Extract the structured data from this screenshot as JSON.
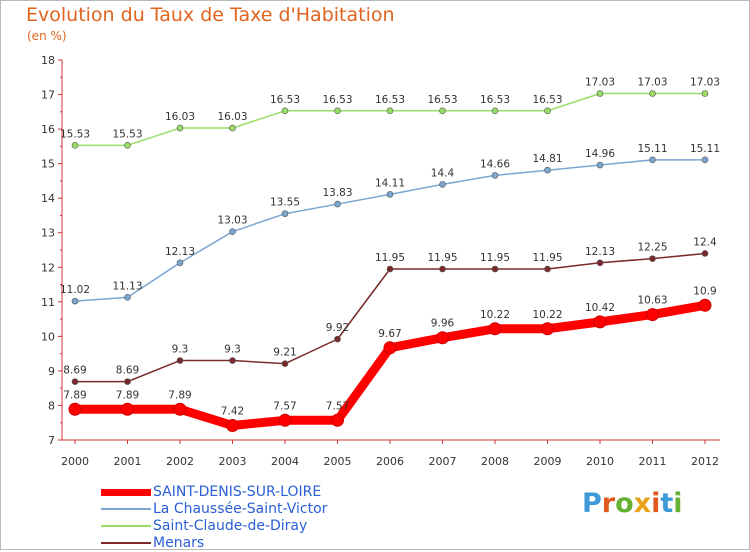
{
  "header": {
    "title": "Evolution du Taux de Taxe d'Habitation",
    "unit": "(en %)"
  },
  "chart_data": {
    "type": "line",
    "title": "Evolution du Taux de Taxe d'Habitation",
    "ylabel": "(en %)",
    "xlabel": "",
    "x": [
      "2000",
      "2001",
      "2002",
      "2003",
      "2004",
      "2005",
      "2006",
      "2007",
      "2008",
      "2009",
      "2010",
      "2011",
      "2012"
    ],
    "ylim": [
      7,
      18
    ],
    "yticks": [
      7,
      8,
      9,
      10,
      11,
      12,
      13,
      14,
      15,
      16,
      17,
      18
    ],
    "grid": false,
    "legend_position": "bottom-left",
    "series": [
      {
        "name": "SAINT-DENIS-SUR-LOIRE",
        "color": "#ff0000",
        "values": [
          7.89,
          7.89,
          7.89,
          7.42,
          7.57,
          7.57,
          9.67,
          9.96,
          10.22,
          10.22,
          10.42,
          10.63,
          10.9
        ],
        "labels": [
          "7.89",
          "7.89",
          "7.89",
          "7.42",
          "7.57",
          "7.57",
          "9.67",
          "9.96",
          "10.22",
          "10.22",
          "10.42",
          "10.63",
          "10.9"
        ]
      },
      {
        "name": "La Chaussée-Saint-Victor",
        "color": "#7aa6d1",
        "values": [
          11.02,
          11.13,
          12.13,
          13.03,
          13.55,
          13.83,
          14.11,
          14.4,
          14.66,
          14.81,
          14.96,
          15.11,
          15.11
        ],
        "labels": [
          "11.02",
          "11.13",
          "12.13",
          "13.03",
          "13.55",
          "13.83",
          "14.11",
          "14.4",
          "14.66",
          "14.81",
          "14.96",
          "15.11",
          "15.11"
        ]
      },
      {
        "name": "Saint-Claude-de-Diray",
        "color": "#99dd66",
        "values": [
          15.53,
          15.53,
          16.03,
          16.03,
          16.53,
          16.53,
          16.53,
          16.53,
          16.53,
          16.53,
          17.03,
          17.03,
          17.03
        ],
        "labels": [
          "15.53",
          "15.53",
          "16.03",
          "16.03",
          "16.53",
          "16.53",
          "16.53",
          "16.53",
          "16.53",
          "16.53",
          "17.03",
          "17.03",
          "17.03"
        ]
      },
      {
        "name": "Menars",
        "color": "#7a2a2a",
        "values": [
          8.69,
          8.69,
          9.3,
          9.3,
          9.21,
          9.92,
          11.95,
          11.95,
          11.95,
          11.95,
          12.13,
          12.25,
          12.4
        ],
        "labels": [
          "8.69",
          "8.69",
          "9.3",
          "9.3",
          "9.21",
          "9.92",
          "11.95",
          "11.95",
          "11.95",
          "11.95",
          "12.13",
          "12.25",
          "12.4"
        ]
      }
    ]
  },
  "legend": {
    "items": [
      {
        "label": "SAINT-DENIS-SUR-LOIRE",
        "color": "#ff0000",
        "text_color": "#2a5fd6"
      },
      {
        "label": "La Chaussée-Saint-Victor",
        "color": "#7aa6d1",
        "text_color": "#2a5fd6"
      },
      {
        "label": "Saint-Claude-de-Diray",
        "color": "#99dd66",
        "text_color": "#2a5fd6"
      },
      {
        "label": "Menars",
        "color": "#7a2a2a",
        "text_color": "#2a5fd6"
      }
    ]
  },
  "logo": {
    "letters": [
      "P",
      "r",
      "o",
      "x",
      "i",
      "t",
      "i"
    ],
    "colors": [
      "#3d9ad6",
      "#e05a1e",
      "#66b032",
      "#e8a317",
      "#e05a1e",
      "#3d9ad6",
      "#66b032"
    ]
  }
}
